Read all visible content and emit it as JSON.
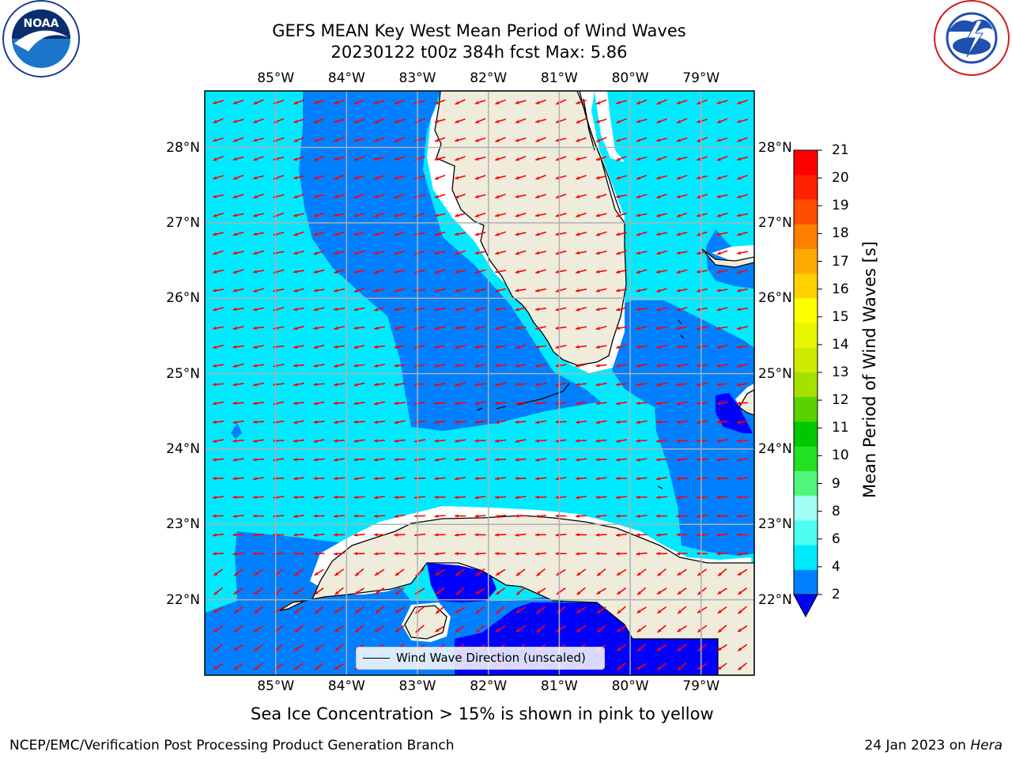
{
  "title": {
    "line1": "GEFS MEAN Key West Mean Period of Wind Waves",
    "line2": "20230122 t00z 384h fcst   Max: 5.86"
  },
  "logos": {
    "noaa_text": "NOAA",
    "noaa_ring": "NATIONAL OCEANIC AND ATMOSPHERIC ADMINISTRATION · U.S. DEPARTMENT OF COMMERCE",
    "nws_ring": "NATIONAL WEATHER SERVICE"
  },
  "map": {
    "lon_range": [
      -86.0,
      -78.25
    ],
    "lat_range": [
      21.0,
      28.75
    ],
    "lon_ticks": [
      "85°W",
      "84°W",
      "83°W",
      "82°W",
      "81°W",
      "80°W",
      "79°W"
    ],
    "lat_ticks": [
      "28°N",
      "27°N",
      "26°N",
      "25°N",
      "24°N",
      "23°N",
      "22°N"
    ],
    "grid": true,
    "arrow_color": "#ff0000",
    "land_color": "#efecdc",
    "legend": {
      "label": "Wind Wave Direction (unscaled)",
      "placement": "bottom-center"
    }
  },
  "colorbar": {
    "label": "Mean Period of Wind Waves [s]",
    "tick_labels": [
      "2",
      "4",
      "6",
      "8",
      "9",
      "10",
      "11",
      "12",
      "13",
      "14",
      "15",
      "16",
      "17",
      "18",
      "19",
      "20",
      "21"
    ],
    "colors": [
      "#0080ff",
      "#00eaff",
      "#4dfff0",
      "#a3fff5",
      "#50f57c",
      "#22e022",
      "#00c800",
      "#5ad200",
      "#a6e000",
      "#cdeb00",
      "#e8f500",
      "#ffff00",
      "#ffd200",
      "#ffaa00",
      "#ff8000",
      "#ff4d00",
      "#ff2000",
      "#ff0000"
    ],
    "under_color": "#0000ff"
  },
  "note": "Sea Ice Concentration > 15% is shown in pink to yellow",
  "footer": {
    "left": "NCEP/EMC/Verification Post Processing Product Generation Branch",
    "right_prefix": "24 Jan 2023 on ",
    "right_host": "Hera"
  }
}
